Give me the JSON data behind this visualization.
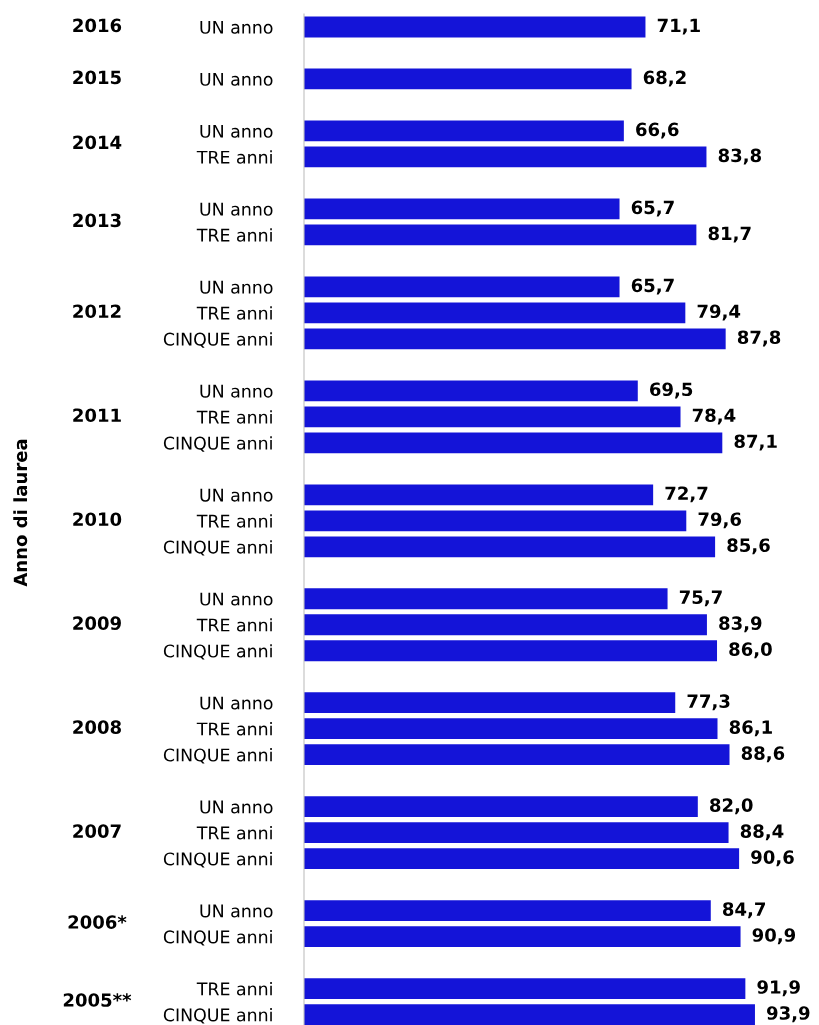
{
  "chart_data": {
    "type": "bar",
    "orientation": "horizontal",
    "categories": [
      "UN anno",
      null,
      "UN anno",
      null,
      "UN anno",
      "TRE anni",
      null,
      "UN anno",
      "TRE anni",
      null,
      "UN anno",
      "TRE anni",
      "CINQUE anni",
      null,
      "UN anno",
      "TRE anni",
      "CINQUE anni",
      null,
      "UN anno",
      "TRE anni",
      "CINQUE anni",
      null,
      "UN anno",
      "TRE anni",
      "CINQUE anni",
      null,
      "UN anno",
      "TRE anni",
      "CINQUE anni",
      null,
      "UN anno",
      "TRE anni",
      "CINQUE anni",
      null,
      "UN anno",
      "CINQUE anni",
      null,
      "TRE anni",
      "CINQUE anni"
    ],
    "values": [
      71.1,
      null,
      68.2,
      null,
      66.6,
      83.8,
      null,
      65.7,
      81.7,
      null,
      65.7,
      79.4,
      87.8,
      null,
      69.5,
      78.4,
      87.1,
      null,
      72.7,
      79.6,
      85.6,
      null,
      75.7,
      83.9,
      86.0,
      null,
      77.3,
      86.1,
      88.6,
      null,
      82.0,
      88.4,
      90.6,
      null,
      84.7,
      90.9,
      null,
      91.9,
      93.9
    ],
    "value_labels": [
      "71,1",
      null,
      "68,2",
      null,
      "66,6",
      "83,8",
      null,
      "65,7",
      "81,7",
      null,
      "65,7",
      "79,4",
      "87,8",
      null,
      "69,5",
      "78,4",
      "87,1",
      null,
      "72,7",
      "79,6",
      "85,6",
      null,
      "75,7",
      "83,9",
      "86,0",
      null,
      "77,3",
      "86,1",
      "88,6",
      null,
      "82,0",
      "88,4",
      "90,6",
      null,
      "84,7",
      "90,9",
      null,
      "91,9",
      "93,9"
    ],
    "color": "#1414d8",
    "annotations": [
      "2016",
      "2015",
      "2014",
      "2013",
      "2012",
      "2011",
      "2010",
      "2009",
      "2008",
      "2007",
      "2006*",
      "2005**",
      "Anno di laurea"
    ],
    "tick_labels": "y",
    "grid": false,
    "legend": false
  }
}
